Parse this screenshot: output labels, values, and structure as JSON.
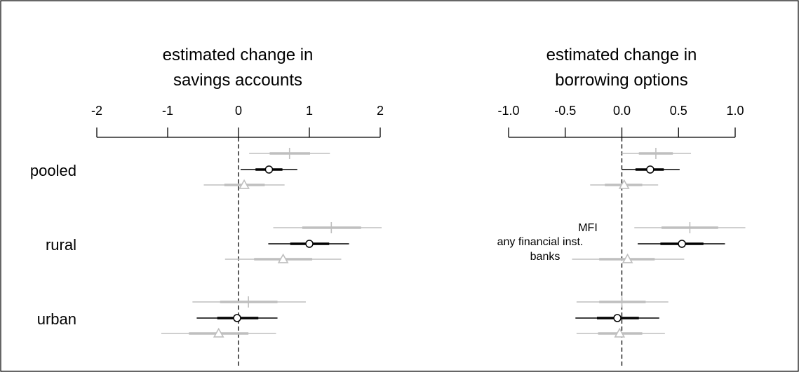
{
  "chart_data": [
    {
      "type": "scatter",
      "title_lines": [
        "estimated change in",
        "savings accounts"
      ],
      "xlim": [
        -2,
        2
      ],
      "xticks": [
        -2,
        -1,
        0,
        1,
        2
      ],
      "xtick_labels": [
        "-2",
        "-1",
        "0",
        "1",
        "2"
      ],
      "categories": [
        "pooled",
        "rural",
        "urban"
      ],
      "series": [
        {
          "marker": "plus",
          "color": "#bfbfbf",
          "estimate": [
            0.72,
            1.31,
            0.14
          ],
          "ci_inner": [
            [
              0.44,
              1.01
            ],
            [
              0.9,
              1.73
            ],
            [
              -0.26,
              0.55
            ]
          ],
          "ci_outer": [
            [
              0.15,
              1.29
            ],
            [
              0.49,
              2.02
            ],
            [
              -0.65,
              0.95
            ]
          ]
        },
        {
          "marker": "circle",
          "color": "#000000",
          "estimate": [
            0.43,
            1.0,
            -0.02
          ],
          "ci_inner": [
            [
              0.24,
              0.62
            ],
            [
              0.73,
              1.28
            ],
            [
              -0.3,
              0.28
            ]
          ],
          "ci_outer": [
            [
              0.03,
              0.83
            ],
            [
              0.42,
              1.56
            ],
            [
              -0.59,
              0.55
            ]
          ]
        },
        {
          "marker": "triangle",
          "color": "#bfbfbf",
          "estimate": [
            0.08,
            0.63,
            -0.28
          ],
          "ci_inner": [
            [
              -0.2,
              0.37
            ],
            [
              0.22,
              1.04
            ],
            [
              -0.7,
              0.14
            ]
          ],
          "ci_outer": [
            [
              -0.49,
              0.65
            ],
            [
              -0.19,
              1.45
            ],
            [
              -1.09,
              0.53
            ]
          ]
        }
      ]
    },
    {
      "type": "scatter",
      "title_lines": [
        "estimated change in",
        "borrowing options"
      ],
      "xlim": [
        -1.0,
        1.0
      ],
      "xticks": [
        -1.0,
        -0.5,
        0.0,
        0.5,
        1.0
      ],
      "xtick_labels": [
        "-1.0",
        "-0.5",
        "0.0",
        "0.5",
        "1.0"
      ],
      "categories": [
        "pooled",
        "rural",
        "urban"
      ],
      "series": [
        {
          "name": "MFI",
          "marker": "plus",
          "color": "#bfbfbf",
          "estimate": [
            0.3,
            0.6,
            0.0
          ],
          "ci_inner": [
            [
              0.15,
              0.45
            ],
            [
              0.35,
              0.85
            ],
            [
              -0.2,
              0.21
            ]
          ],
          "ci_outer": [
            [
              0.0,
              0.61
            ],
            [
              0.11,
              1.09
            ],
            [
              -0.4,
              0.41
            ]
          ]
        },
        {
          "name": "any financial inst.",
          "marker": "circle",
          "color": "#000000",
          "estimate": [
            0.25,
            0.53,
            -0.04
          ],
          "ci_inner": [
            [
              0.12,
              0.37
            ],
            [
              0.34,
              0.72
            ],
            [
              -0.22,
              0.15
            ]
          ],
          "ci_outer": [
            [
              0.0,
              0.51
            ],
            [
              0.14,
              0.91
            ],
            [
              -0.41,
              0.33
            ]
          ]
        },
        {
          "name": "banks",
          "marker": "triangle",
          "color": "#bfbfbf",
          "estimate": [
            0.02,
            0.05,
            -0.02
          ],
          "ci_inner": [
            [
              -0.15,
              0.18
            ],
            [
              -0.2,
              0.29
            ],
            [
              -0.21,
              0.18
            ]
          ],
          "ci_outer": [
            [
              -0.28,
              0.32
            ],
            [
              -0.44,
              0.55
            ],
            [
              -0.4,
              0.38
            ]
          ]
        }
      ]
    }
  ]
}
